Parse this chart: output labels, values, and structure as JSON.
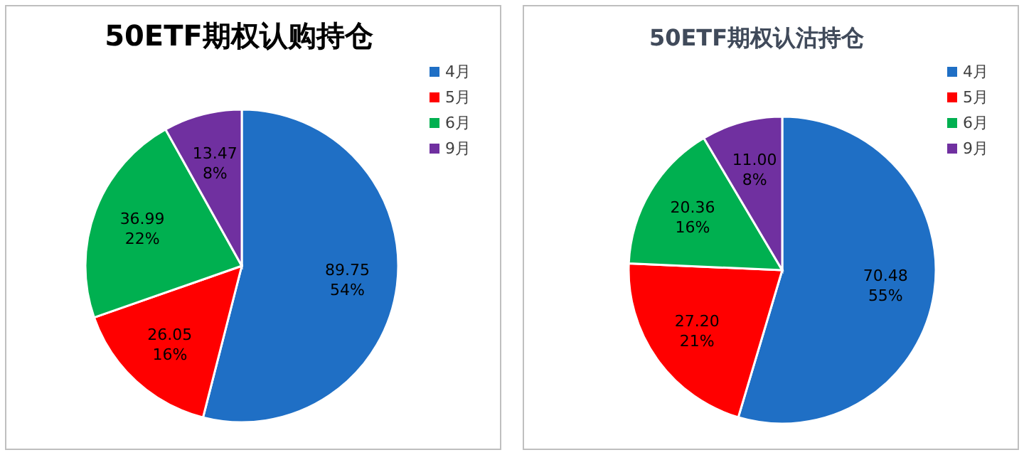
{
  "chart_data": [
    {
      "type": "pie",
      "title": "50ETF期权认购持仓",
      "categories": [
        "4月",
        "5月",
        "6月",
        "9月"
      ],
      "values": [
        89.75,
        26.05,
        36.99,
        13.47
      ],
      "value_labels": [
        "89.75 54%",
        "26.05 16%",
        "36.99 22%",
        "13.47 8%"
      ],
      "colors": [
        "#1f6fc5",
        "#ff0000",
        "#00b050",
        "#7030a0"
      ],
      "legend": "top right"
    },
    {
      "type": "pie",
      "title": "50ETF期权认沽持仓",
      "categories": [
        "4月",
        "5月",
        "6月",
        "9月"
      ],
      "values": [
        70.48,
        27.2,
        20.36,
        11.0
      ],
      "value_labels": [
        "70.48 55%",
        "27.20 21%",
        "20.36 16%",
        "11.00 8%"
      ],
      "colors": [
        "#1f6fc5",
        "#ff0000",
        "#00b050",
        "#7030a0"
      ],
      "legend": "top right"
    }
  ]
}
